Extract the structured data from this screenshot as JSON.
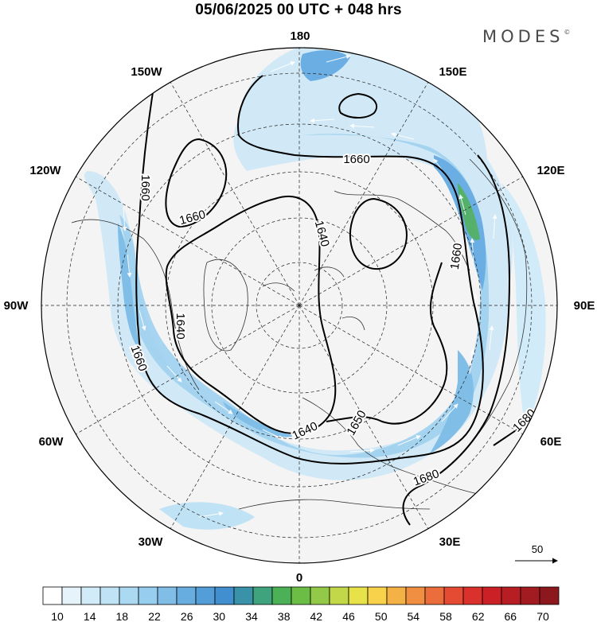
{
  "title": "05/06/2025  00 UTC  + 048 hrs",
  "brand": "MODES",
  "brand_mark": "©",
  "map": {
    "projection": "north-polar-stereographic",
    "longitude_labels": [
      {
        "lon": 180,
        "text": "180"
      },
      {
        "lon": 150,
        "text": "150E"
      },
      {
        "lon": 120,
        "text": "120E"
      },
      {
        "lon": 90,
        "text": "90E"
      },
      {
        "lon": 60,
        "text": "60E"
      },
      {
        "lon": 30,
        "text": "30E"
      },
      {
        "lon": 0,
        "text": "0"
      },
      {
        "lon": -30,
        "text": "30W"
      },
      {
        "lon": -60,
        "text": "60W"
      },
      {
        "lon": -90,
        "text": "90W"
      },
      {
        "lon": -120,
        "text": "120W"
      },
      {
        "lon": -150,
        "text": "150W"
      }
    ],
    "contour_labels": [
      {
        "text": "1660"
      },
      {
        "text": "1660"
      },
      {
        "text": "1660"
      },
      {
        "text": "1660"
      },
      {
        "text": "1660"
      },
      {
        "text": "1640"
      },
      {
        "text": "1640"
      },
      {
        "text": "1640"
      },
      {
        "text": "1650"
      },
      {
        "text": "1680"
      },
      {
        "text": "1680"
      }
    ],
    "reference_vector": {
      "label": "50"
    }
  },
  "colorbar": {
    "tick_labels": [
      "10",
      "14",
      "18",
      "22",
      "26",
      "30",
      "34",
      "38",
      "42",
      "46",
      "50",
      "54",
      "58",
      "62",
      "66",
      "70"
    ],
    "colors": [
      "#ffffff",
      "#e6f3fb",
      "#d2ebf8",
      "#bfe3f5",
      "#abd9f2",
      "#97cdee",
      "#80bee8",
      "#68ade0",
      "#539dd8",
      "#418fcf",
      "#3a92a8",
      "#3fa37e",
      "#4cb057",
      "#6bbd45",
      "#92c948",
      "#c2d848",
      "#e8e24a",
      "#f7d24a",
      "#f4b146",
      "#f08f41",
      "#ec6d3c",
      "#e54b33",
      "#da312c",
      "#cb2026",
      "#b71e24",
      "#a21b21",
      "#8c181e"
    ],
    "value_min": 10,
    "value_max": 70
  }
}
